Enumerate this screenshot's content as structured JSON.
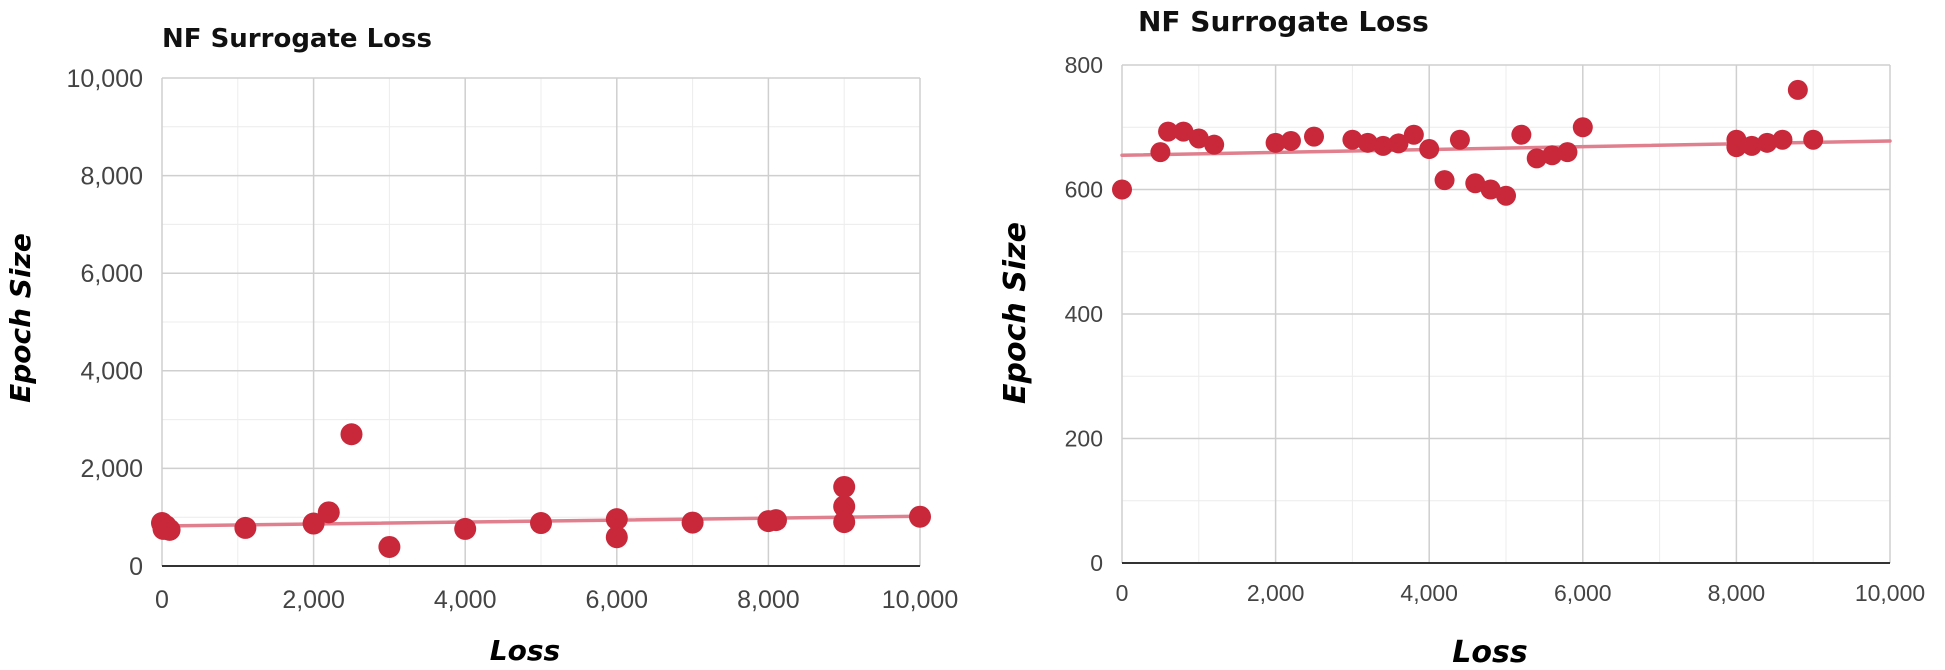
{
  "chart_data": [
    {
      "type": "scatter",
      "title": "NF Surrogate Loss",
      "xlabel": "Loss",
      "ylabel": "Epoch Size",
      "xlim": [
        0,
        10000
      ],
      "ylim": [
        0,
        10000
      ],
      "x_ticks": [
        "0",
        "2,000",
        "4,000",
        "6,000",
        "8,000",
        "10,000"
      ],
      "y_ticks": [
        "0",
        "2,000",
        "4,000",
        "6,000",
        "8,000",
        "10,000"
      ],
      "grid": true,
      "colors": {
        "points": "#c8283a",
        "trendline": "#e0808e"
      },
      "trendline": {
        "x": [
          0,
          10000
        ],
        "y": [
          820,
          1020
        ]
      },
      "points": [
        {
          "x": 0,
          "y": 880
        },
        {
          "x": 20,
          "y": 760
        },
        {
          "x": 50,
          "y": 820
        },
        {
          "x": 100,
          "y": 740
        },
        {
          "x": 1100,
          "y": 780
        },
        {
          "x": 2000,
          "y": 870
        },
        {
          "x": 2200,
          "y": 1100
        },
        {
          "x": 2500,
          "y": 2700
        },
        {
          "x": 3000,
          "y": 390
        },
        {
          "x": 4000,
          "y": 760
        },
        {
          "x": 5000,
          "y": 880
        },
        {
          "x": 6000,
          "y": 590
        },
        {
          "x": 6000,
          "y": 960
        },
        {
          "x": 7000,
          "y": 890
        },
        {
          "x": 8000,
          "y": 920
        },
        {
          "x": 8100,
          "y": 940
        },
        {
          "x": 9000,
          "y": 900
        },
        {
          "x": 9000,
          "y": 1220
        },
        {
          "x": 9000,
          "y": 1620
        },
        {
          "x": 10000,
          "y": 1010
        }
      ]
    },
    {
      "type": "scatter",
      "title": "NF Surrogate Loss",
      "xlabel": "Loss",
      "ylabel": "Epoch Size",
      "xlim": [
        0,
        10000
      ],
      "ylim": [
        0,
        800
      ],
      "x_ticks": [
        "0",
        "2,000",
        "4,000",
        "6,000",
        "8,000",
        "10,000"
      ],
      "y_ticks": [
        "0",
        "200",
        "400",
        "600",
        "800"
      ],
      "grid": true,
      "colors": {
        "points": "#c8283a",
        "trendline": "#e0808e"
      },
      "trendline": {
        "x": [
          0,
          10000
        ],
        "y": [
          655,
          678
        ]
      },
      "points": [
        {
          "x": 0,
          "y": 600
        },
        {
          "x": 500,
          "y": 660
        },
        {
          "x": 600,
          "y": 693
        },
        {
          "x": 800,
          "y": 693
        },
        {
          "x": 1000,
          "y": 682
        },
        {
          "x": 1200,
          "y": 672
        },
        {
          "x": 2000,
          "y": 675
        },
        {
          "x": 2200,
          "y": 678
        },
        {
          "x": 2500,
          "y": 685
        },
        {
          "x": 3000,
          "y": 680
        },
        {
          "x": 3200,
          "y": 675
        },
        {
          "x": 3400,
          "y": 670
        },
        {
          "x": 3600,
          "y": 674
        },
        {
          "x": 3800,
          "y": 688
        },
        {
          "x": 4000,
          "y": 665
        },
        {
          "x": 4200,
          "y": 615
        },
        {
          "x": 4400,
          "y": 680
        },
        {
          "x": 4600,
          "y": 610
        },
        {
          "x": 4800,
          "y": 600
        },
        {
          "x": 5000,
          "y": 590
        },
        {
          "x": 5200,
          "y": 688
        },
        {
          "x": 5400,
          "y": 650
        },
        {
          "x": 5600,
          "y": 655
        },
        {
          "x": 5800,
          "y": 660
        },
        {
          "x": 6000,
          "y": 700
        },
        {
          "x": 8000,
          "y": 668
        },
        {
          "x": 8000,
          "y": 680
        },
        {
          "x": 8200,
          "y": 670
        },
        {
          "x": 8400,
          "y": 675
        },
        {
          "x": 8600,
          "y": 680
        },
        {
          "x": 8800,
          "y": 760
        },
        {
          "x": 9000,
          "y": 680
        }
      ]
    }
  ]
}
